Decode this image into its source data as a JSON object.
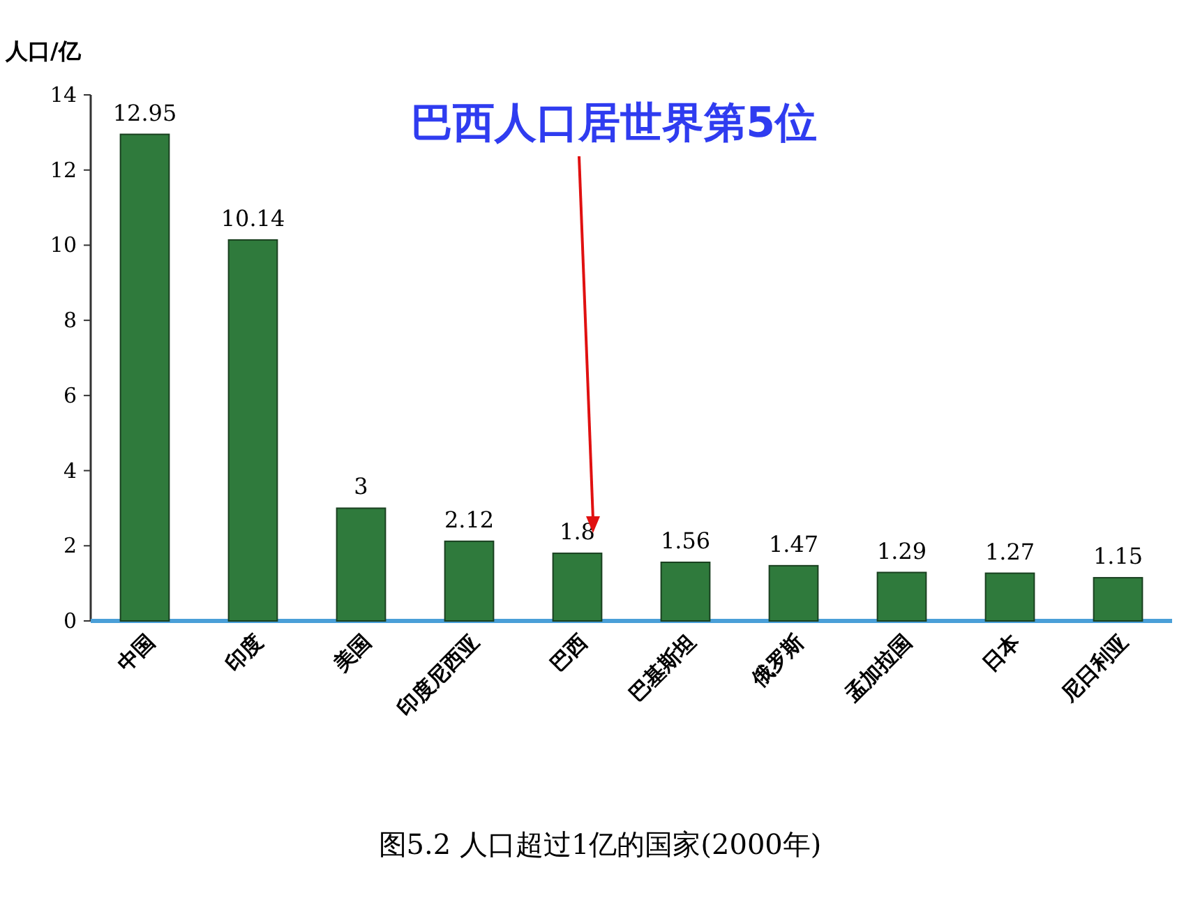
{
  "chart_data": {
    "type": "bar",
    "ylabel": "人口/亿",
    "categories": [
      "中国",
      "印度",
      "美国",
      "印度尼西亚",
      "巴西",
      "巴基斯坦",
      "俄罗斯",
      "孟加拉国",
      "日本",
      "尼日利亚"
    ],
    "values": [
      12.95,
      10.14,
      3,
      2.12,
      1.8,
      1.56,
      1.47,
      1.29,
      1.27,
      1.15
    ],
    "value_labels": [
      "12.95",
      "10.14",
      "3",
      "2.12",
      "1.8",
      "1.56",
      "1.47",
      "1.29",
      "1.27",
      "1.15"
    ],
    "color": "#2f7a3c",
    "ylim": [
      0,
      14
    ],
    "yticks": [
      0,
      2,
      4,
      6,
      8,
      10,
      12,
      14
    ],
    "grid": false,
    "annotations": [
      "巴西人口居世界第5位",
      "图5.2  人口超过1亿的国家(2000年)"
    ]
  }
}
